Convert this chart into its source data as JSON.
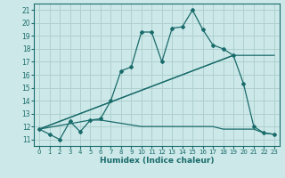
{
  "xlabel": "Humidex (Indice chaleur)",
  "bg_color": "#cce8e8",
  "line_color": "#1a6b6b",
  "grid_color": "#b0d0d0",
  "xlim": [
    -0.5,
    23.5
  ],
  "ylim": [
    10.5,
    21.5
  ],
  "yticks": [
    11,
    12,
    13,
    14,
    15,
    16,
    17,
    18,
    19,
    20,
    21
  ],
  "xticks": [
    0,
    1,
    2,
    3,
    4,
    5,
    6,
    7,
    8,
    9,
    10,
    11,
    12,
    13,
    14,
    15,
    16,
    17,
    18,
    19,
    20,
    21,
    22,
    23
  ],
  "series1_x": [
    0,
    1,
    2,
    3,
    4,
    5,
    6,
    7,
    8,
    9,
    10,
    11,
    12,
    13,
    14,
    15,
    16,
    17,
    18,
    19,
    20,
    21,
    22,
    23
  ],
  "series1_y": [
    11.8,
    11.4,
    11.0,
    12.4,
    11.6,
    12.5,
    12.6,
    14.0,
    16.3,
    16.6,
    19.3,
    19.3,
    17.0,
    19.6,
    19.7,
    21.0,
    19.5,
    18.3,
    18.0,
    17.5,
    15.3,
    12.0,
    11.5,
    11.4
  ],
  "series2_x": [
    0,
    19
  ],
  "series2_y": [
    11.8,
    17.5
  ],
  "series3_x": [
    0,
    19,
    20,
    21,
    22,
    23
  ],
  "series3_y": [
    11.8,
    17.5,
    17.5,
    17.5,
    17.5,
    17.5
  ],
  "series4_x": [
    0,
    5,
    6,
    10,
    11,
    12,
    13,
    14,
    15,
    16,
    17,
    18,
    19,
    20,
    21,
    22,
    23
  ],
  "series4_y": [
    11.8,
    12.5,
    12.5,
    12.0,
    12.0,
    12.0,
    12.0,
    12.0,
    12.0,
    12.0,
    12.0,
    11.8,
    11.8,
    11.8,
    11.8,
    11.5,
    11.4
  ]
}
